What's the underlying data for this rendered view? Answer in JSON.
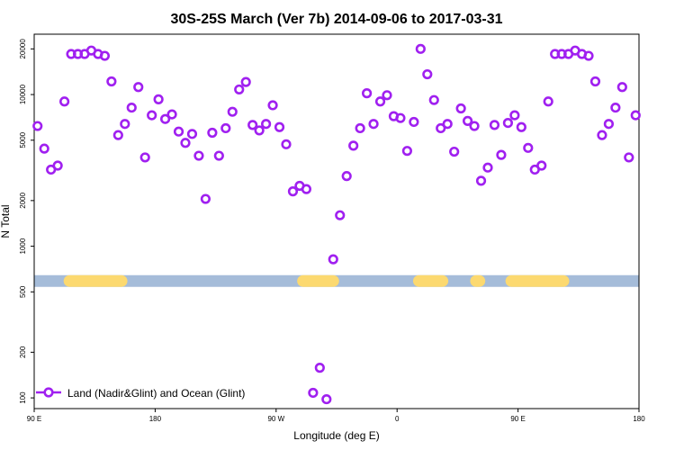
{
  "chart_data": {
    "type": "scatter",
    "title": "30S-25S March (Ver 7b)   2014-09-06 to 2017-03-31",
    "xlabel": "Longitude (deg E)",
    "ylabel": "N Total",
    "xlim": [
      90,
      450
    ],
    "ylim": [
      85,
      25000
    ],
    "y_scale": "log",
    "x_ticks": [
      {
        "value": 90,
        "label": "90 E"
      },
      {
        "value": 162,
        "label": "180"
      },
      {
        "value": 234,
        "label": "90 W"
      },
      {
        "value": 306,
        "label": "0"
      },
      {
        "value": 378,
        "label": "90 E"
      },
      {
        "value": 450,
        "label": "180"
      }
    ],
    "y_ticks": [
      {
        "value": 100,
        "label": "100"
      },
      {
        "value": 200,
        "label": "200"
      },
      {
        "value": 500,
        "label": "500"
      },
      {
        "value": 1000,
        "label": "1000"
      },
      {
        "value": 2000,
        "label": "2000"
      },
      {
        "value": 5000,
        "label": "5000"
      },
      {
        "value": 10000,
        "label": "10000"
      },
      {
        "value": 20000,
        "label": "20000"
      }
    ],
    "surface_band": {
      "y_value": 590,
      "base_color": "#a5bcd9",
      "land_color": "#fcd970",
      "land_segments": [
        [
          111,
          142
        ],
        [
          250,
          268
        ],
        [
          319,
          333
        ],
        [
          374,
          405
        ],
        [
          353,
          355
        ]
      ]
    },
    "series": [
      {
        "name": "Land (Nadir&Glint) and Ocean (Glint)",
        "color": "#a020f0",
        "points": [
          [
            92,
            6200
          ],
          [
            96,
            4400
          ],
          [
            100,
            3200
          ],
          [
            104,
            3400
          ],
          [
            108,
            9000
          ],
          [
            112,
            18500
          ],
          [
            116,
            18500
          ],
          [
            120,
            18500
          ],
          [
            124,
            19500
          ],
          [
            128,
            18500
          ],
          [
            132,
            18000
          ],
          [
            136,
            12200
          ],
          [
            140,
            5400
          ],
          [
            144,
            6400
          ],
          [
            148,
            8200
          ],
          [
            152,
            11200
          ],
          [
            156,
            3850
          ],
          [
            160,
            7300
          ],
          [
            164,
            9300
          ],
          [
            168,
            6900
          ],
          [
            172,
            7400
          ],
          [
            176,
            5700
          ],
          [
            180,
            4800
          ],
          [
            184,
            5500
          ],
          [
            188,
            3950
          ],
          [
            192,
            2050
          ],
          [
            196,
            5600
          ],
          [
            200,
            3950
          ],
          [
            204,
            6000
          ],
          [
            208,
            7700
          ],
          [
            212,
            10800
          ],
          [
            216,
            12100
          ],
          [
            220,
            6300
          ],
          [
            224,
            5800
          ],
          [
            228,
            6400
          ],
          [
            232,
            8500
          ],
          [
            236,
            6100
          ],
          [
            240,
            4700
          ],
          [
            244,
            2300
          ],
          [
            248,
            2500
          ],
          [
            252,
            2380
          ],
          [
            256,
            108
          ],
          [
            260,
            158
          ],
          [
            264,
            98
          ],
          [
            268,
            820
          ],
          [
            272,
            1600
          ],
          [
            276,
            2900
          ],
          [
            280,
            4600
          ],
          [
            284,
            6000
          ],
          [
            288,
            10200
          ],
          [
            292,
            6400
          ],
          [
            296,
            9000
          ],
          [
            300,
            9900
          ],
          [
            304,
            7200
          ],
          [
            308,
            7000
          ],
          [
            312,
            4250
          ],
          [
            316,
            6600
          ],
          [
            320,
            20000
          ],
          [
            324,
            13600
          ],
          [
            328,
            9200
          ],
          [
            332,
            6000
          ],
          [
            336,
            6400
          ],
          [
            340,
            4200
          ],
          [
            344,
            8100
          ],
          [
            348,
            6700
          ],
          [
            352,
            6200
          ],
          [
            356,
            2700
          ],
          [
            360,
            3300
          ],
          [
            364,
            6300
          ],
          [
            368,
            4000
          ],
          [
            372,
            6500
          ],
          [
            376,
            7300
          ],
          [
            380,
            6100
          ],
          [
            384,
            4450
          ],
          [
            388,
            3200
          ],
          [
            392,
            3400
          ],
          [
            396,
            9000
          ],
          [
            400,
            18500
          ],
          [
            404,
            18500
          ],
          [
            408,
            18500
          ],
          [
            412,
            19500
          ],
          [
            416,
            18500
          ],
          [
            420,
            18000
          ],
          [
            424,
            12200
          ],
          [
            428,
            5400
          ],
          [
            432,
            6400
          ],
          [
            436,
            8200
          ],
          [
            440,
            11200
          ],
          [
            444,
            3850
          ],
          [
            448,
            7300
          ]
        ]
      }
    ],
    "legend": {
      "placement": "bottom-left",
      "entries": [
        "Land (Nadir&Glint) and Ocean (Glint)"
      ]
    }
  }
}
